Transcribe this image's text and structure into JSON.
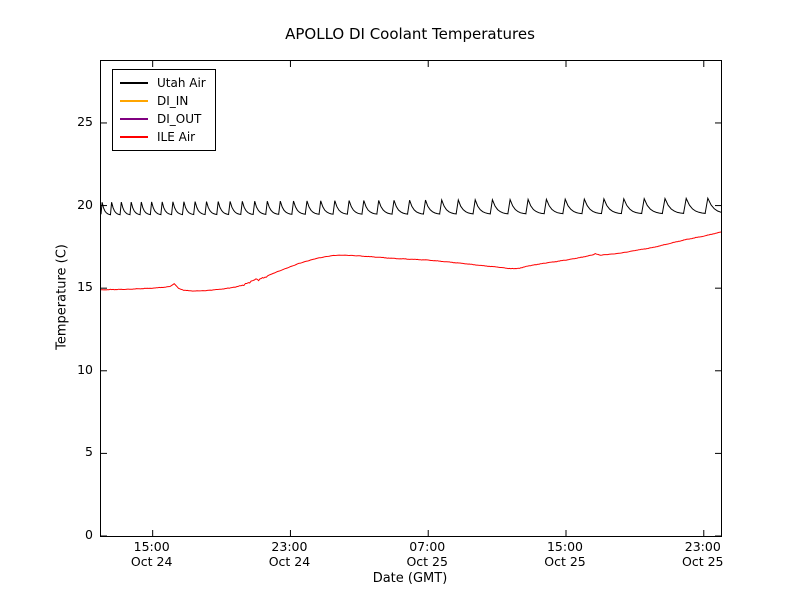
{
  "title": "APOLLO DI Coolant Temperatures",
  "chart_data": {
    "type": "line",
    "title": "APOLLO DI Coolant Temperatures",
    "xlabel": "Date (GMT)",
    "ylabel": "Temperature (C)",
    "grid": false,
    "legend_position": "upper left",
    "x_axis": {
      "unit": "hours since Oct 24 12:00 GMT",
      "range": [
        0,
        36
      ],
      "tick_hours": [
        3,
        11,
        19,
        27,
        35
      ],
      "tick_labels": [
        {
          "time": "15:00",
          "date": "Oct 24"
        },
        {
          "time": "23:00",
          "date": "Oct 24"
        },
        {
          "time": "07:00",
          "date": "Oct 25"
        },
        {
          "time": "15:00",
          "date": "Oct 25"
        },
        {
          "time": "23:00",
          "date": "Oct 25"
        }
      ]
    },
    "y_axis": {
      "range": [
        0,
        28.75
      ],
      "ticks": [
        0,
        5,
        10,
        15,
        20,
        25
      ]
    },
    "series": [
      {
        "name": "Utah Air",
        "color": "#000000",
        "visible": true,
        "pattern": "sawtooth",
        "sawtooth": {
          "base_start": 19.42,
          "base_end": 19.5,
          "peak_start": 20.2,
          "peak_end": 20.45,
          "period_start_h": 0.55,
          "period_end_h": 1.3
        }
      },
      {
        "name": "DI_IN",
        "color": "#ffa500",
        "visible": false,
        "points": []
      },
      {
        "name": "DI_OUT",
        "color": "#800080",
        "visible": false,
        "points": []
      },
      {
        "name": "ILE Air",
        "color": "#ff0000",
        "visible": true,
        "noise": true,
        "points": [
          [
            0,
            14.9
          ],
          [
            0.7,
            14.92
          ],
          [
            1.5,
            14.93
          ],
          [
            2.3,
            14.97
          ],
          [
            3,
            15.0
          ],
          [
            3.6,
            15.05
          ],
          [
            4.0,
            15.1
          ],
          [
            4.25,
            15.27
          ],
          [
            4.5,
            15.0
          ],
          [
            4.8,
            14.87
          ],
          [
            5.4,
            14.83
          ],
          [
            6,
            14.85
          ],
          [
            6.6,
            14.9
          ],
          [
            7.2,
            14.97
          ],
          [
            7.8,
            15.07
          ],
          [
            8.3,
            15.2
          ],
          [
            8.8,
            15.45
          ],
          [
            9.0,
            15.55
          ],
          [
            9.15,
            15.45
          ],
          [
            9.3,
            15.6
          ],
          [
            9.6,
            15.7
          ],
          [
            10,
            15.9
          ],
          [
            10.5,
            16.1
          ],
          [
            11,
            16.3
          ],
          [
            11.5,
            16.5
          ],
          [
            12,
            16.65
          ],
          [
            12.5,
            16.8
          ],
          [
            13,
            16.9
          ],
          [
            13.5,
            16.98
          ],
          [
            14,
            17.0
          ],
          [
            14.5,
            16.98
          ],
          [
            15,
            16.95
          ],
          [
            16,
            16.88
          ],
          [
            17,
            16.8
          ],
          [
            18,
            16.75
          ],
          [
            19,
            16.7
          ],
          [
            20,
            16.6
          ],
          [
            21,
            16.5
          ],
          [
            22,
            16.38
          ],
          [
            23,
            16.28
          ],
          [
            23.8,
            16.18
          ],
          [
            24.3,
            16.2
          ],
          [
            24.6,
            16.3
          ],
          [
            25.2,
            16.42
          ],
          [
            26,
            16.55
          ],
          [
            27,
            16.7
          ],
          [
            27.8,
            16.85
          ],
          [
            28.5,
            17.0
          ],
          [
            28.7,
            17.08
          ],
          [
            29,
            17.0
          ],
          [
            29.5,
            17.05
          ],
          [
            30,
            17.1
          ],
          [
            30.5,
            17.18
          ],
          [
            31,
            17.28
          ],
          [
            32,
            17.45
          ],
          [
            33,
            17.7
          ],
          [
            34,
            17.95
          ],
          [
            35,
            18.15
          ],
          [
            36,
            18.4
          ]
        ]
      }
    ]
  }
}
